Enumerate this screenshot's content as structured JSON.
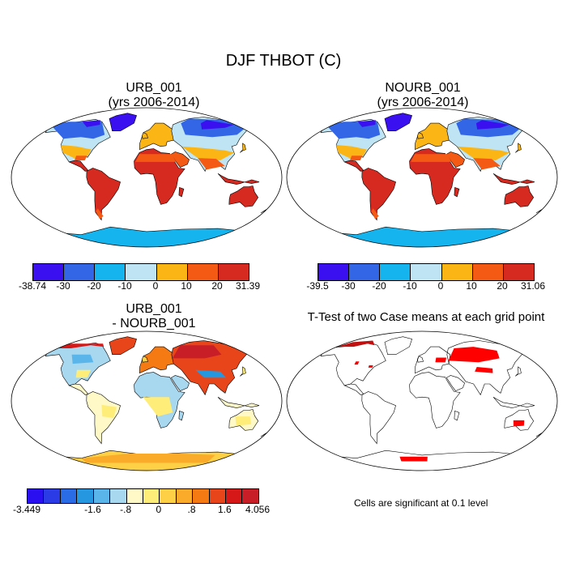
{
  "figure": {
    "title": "DJF THBOT (C)",
    "note": "Cells are significant at 0.1 level"
  },
  "panels": [
    {
      "id": "urb",
      "title_line1": "URB_001",
      "title_line2": "(yrs 2006-2014)",
      "colorbar": {
        "colors": [
          "#3a10f0",
          "#3366e6",
          "#16b4ee",
          "#bfe5f4",
          "#fbb514",
          "#f55a14",
          "#d62a20"
        ],
        "labels": [
          "-38.74",
          "-30",
          "-20",
          "-10",
          "0",
          "10",
          "20",
          "31.39"
        ]
      }
    },
    {
      "id": "nourb",
      "title_line1": "NOURB_001",
      "title_line2": "(yrs 2006-2014)",
      "colorbar": {
        "colors": [
          "#3a10f0",
          "#3366e6",
          "#16b4ee",
          "#bfe5f4",
          "#fbb514",
          "#f55a14",
          "#d62a20"
        ],
        "labels": [
          "-39.5",
          "-30",
          "-20",
          "-10",
          "0",
          "10",
          "20",
          "31.06"
        ]
      }
    },
    {
      "id": "diff",
      "title_line1": "URB_001",
      "title_line2": "- NOURB_001",
      "colorbar": {
        "colors": [
          "#2a10f0",
          "#2b3ce6",
          "#2a6be6",
          "#2596e0",
          "#5ab6ea",
          "#a8d8f0",
          "#fff9c8",
          "#ffed7a",
          "#fdd046",
          "#fbab2a",
          "#f57a14",
          "#e8461a",
          "#d61818",
          "#c81e28"
        ],
        "labels": [
          "-3.449",
          "-1.6",
          "-.8",
          "0",
          ".8",
          "1.6",
          "4.056"
        ]
      }
    },
    {
      "id": "ttest",
      "title_line1": "T-Test of two Case means at each grid point"
    }
  ]
}
